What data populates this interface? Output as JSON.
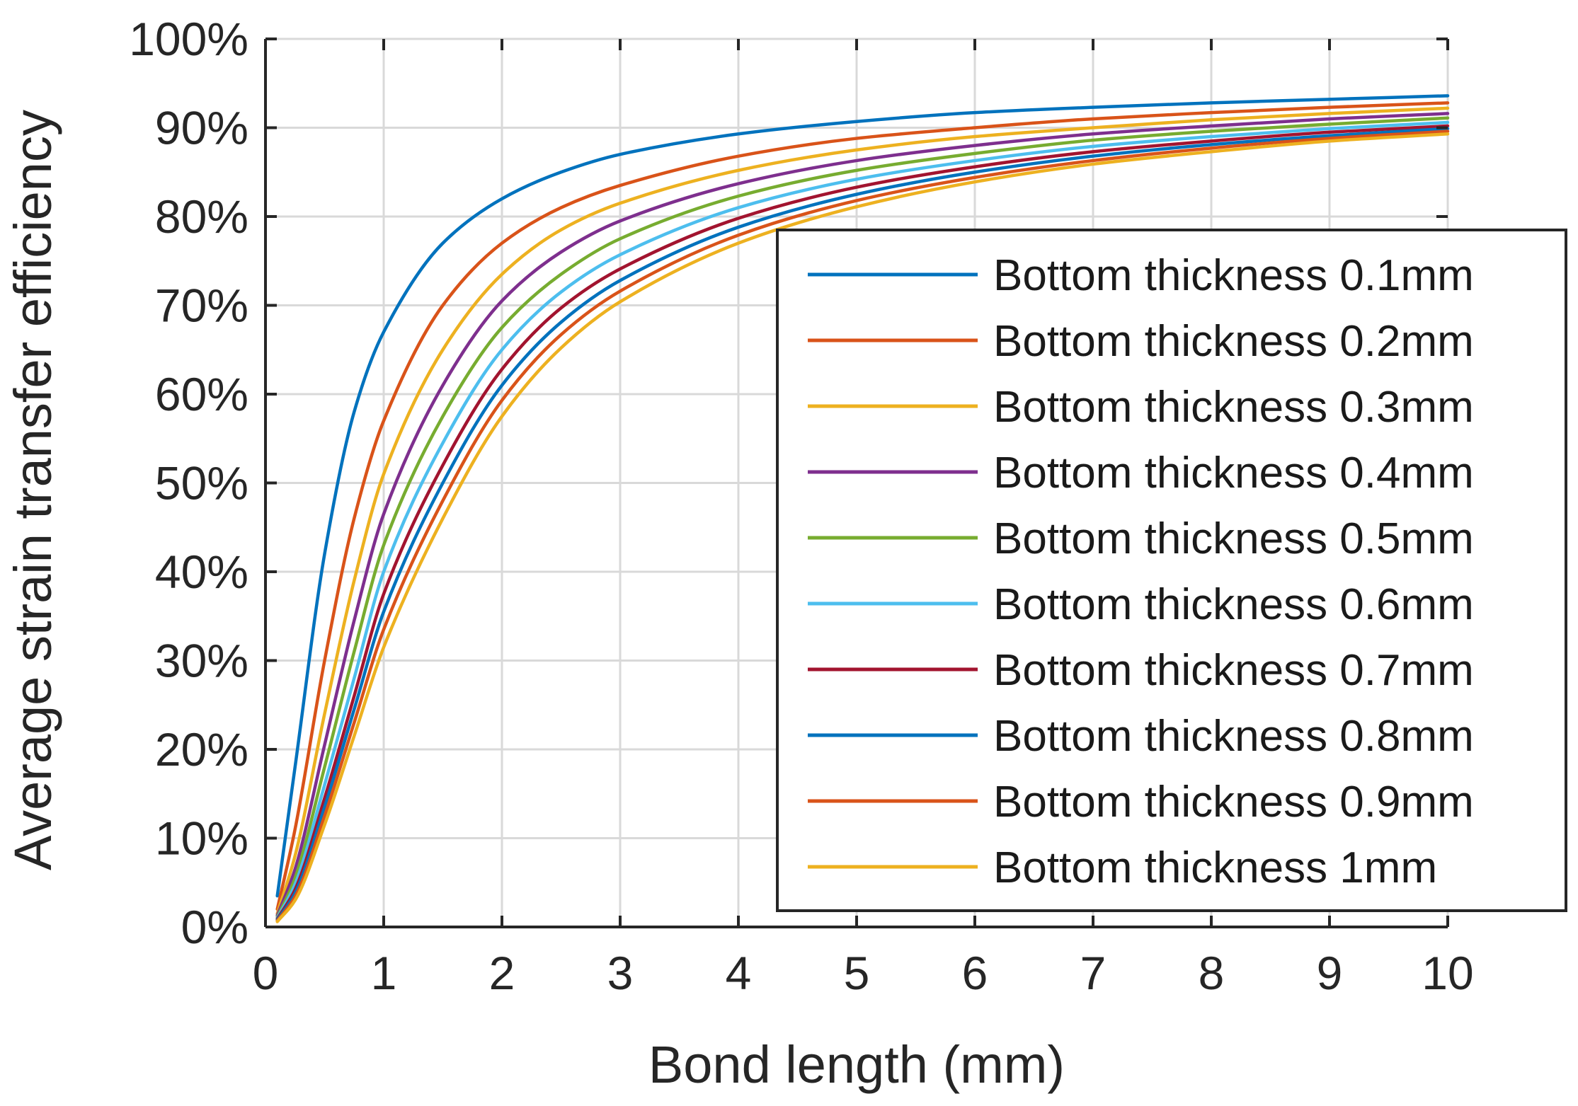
{
  "chart_data": {
    "type": "line",
    "title": "",
    "xlabel": "Bond length (mm)",
    "ylabel": "Average strain transfer efficiency",
    "xlim": [
      0,
      10
    ],
    "ylim": [
      0,
      100
    ],
    "xticks": [
      0,
      1,
      2,
      3,
      4,
      5,
      6,
      7,
      8,
      9,
      10
    ],
    "xtick_labels": [
      "0",
      "1",
      "2",
      "3",
      "4",
      "5",
      "6",
      "7",
      "8",
      "9",
      "10"
    ],
    "yticks": [
      0,
      10,
      20,
      30,
      40,
      50,
      60,
      70,
      80,
      90,
      100
    ],
    "ytick_labels": [
      "0%",
      "10%",
      "20%",
      "30%",
      "40%",
      "50%",
      "60%",
      "70%",
      "80%",
      "90%",
      "100%"
    ],
    "grid": true,
    "legend_position": "right",
    "x": [
      0.1,
      0.25,
      0.5,
      0.75,
      1,
      1.5,
      2,
      2.5,
      3,
      4,
      5,
      6,
      7,
      8,
      9,
      10
    ],
    "series": [
      {
        "name": "Bottom thickness 0.1mm",
        "color": "#0072BD",
        "values": [
          3.5,
          18,
          42,
          58,
          67,
          77,
          82,
          85,
          87,
          89.3,
          90.7,
          91.7,
          92.3,
          92.8,
          93.2,
          93.6
        ]
      },
      {
        "name": "Bottom thickness 0.2mm",
        "color": "#D95319",
        "values": [
          2,
          11,
          30,
          46,
          57,
          70,
          77,
          81,
          83.5,
          86.8,
          88.8,
          90,
          91,
          91.7,
          92.3,
          92.8
        ]
      },
      {
        "name": "Bottom thickness 0.3mm",
        "color": "#EDB120",
        "values": [
          1.5,
          8,
          24,
          39,
          51,
          65,
          73.5,
          78.5,
          81.5,
          85.2,
          87.5,
          89,
          90,
          90.9,
          91.6,
          92.2
        ]
      },
      {
        "name": "Bottom thickness 0.4mm",
        "color": "#7E2F8E",
        "values": [
          1.3,
          6.5,
          20.5,
          34.5,
          46.5,
          61,
          70.5,
          76,
          79.5,
          83.7,
          86.3,
          88,
          89.3,
          90.2,
          91,
          91.6
        ]
      },
      {
        "name": "Bottom thickness 0.5mm",
        "color": "#77AC30",
        "values": [
          1.1,
          5.5,
          18,
          31,
          43,
          57.5,
          67.5,
          73.5,
          77.5,
          82.3,
          85.2,
          87.1,
          88.6,
          89.6,
          90.4,
          91.1
        ]
      },
      {
        "name": "Bottom thickness 0.6mm",
        "color": "#4DBEEE",
        "values": [
          1,
          4.8,
          16,
          28,
          40,
          54.5,
          65,
          71.5,
          75.7,
          81,
          84.2,
          86.3,
          87.9,
          89,
          89.9,
          90.6
        ]
      },
      {
        "name": "Bottom thickness 0.7mm",
        "color": "#A2142F",
        "values": [
          0.9,
          4.2,
          14.5,
          26,
          37.5,
          52,
          62.8,
          69.7,
          74.1,
          79.8,
          83.3,
          85.6,
          87.3,
          88.5,
          89.5,
          90.2
        ]
      },
      {
        "name": "Bottom thickness 0.8mm",
        "color": "#0072BD",
        "values": [
          0.8,
          3.8,
          13.5,
          24.5,
          35.5,
          50,
          61,
          68.1,
          72.8,
          78.8,
          82.5,
          85,
          86.8,
          88.1,
          89.1,
          89.9
        ]
      },
      {
        "name": "Bottom thickness 0.9mm",
        "color": "#D95319",
        "values": [
          0.7,
          3.4,
          12.5,
          23,
          33.5,
          48,
          59.3,
          66.7,
          71.6,
          77.9,
          81.8,
          84.4,
          86.3,
          87.7,
          88.8,
          89.6
        ]
      },
      {
        "name": "Bottom thickness 1mm",
        "color": "#EDB120",
        "values": [
          0.6,
          3,
          11.5,
          21.5,
          31.5,
          46,
          57.5,
          65.2,
          70.4,
          77,
          81.1,
          83.9,
          85.9,
          87.3,
          88.5,
          89.3
        ]
      }
    ]
  }
}
